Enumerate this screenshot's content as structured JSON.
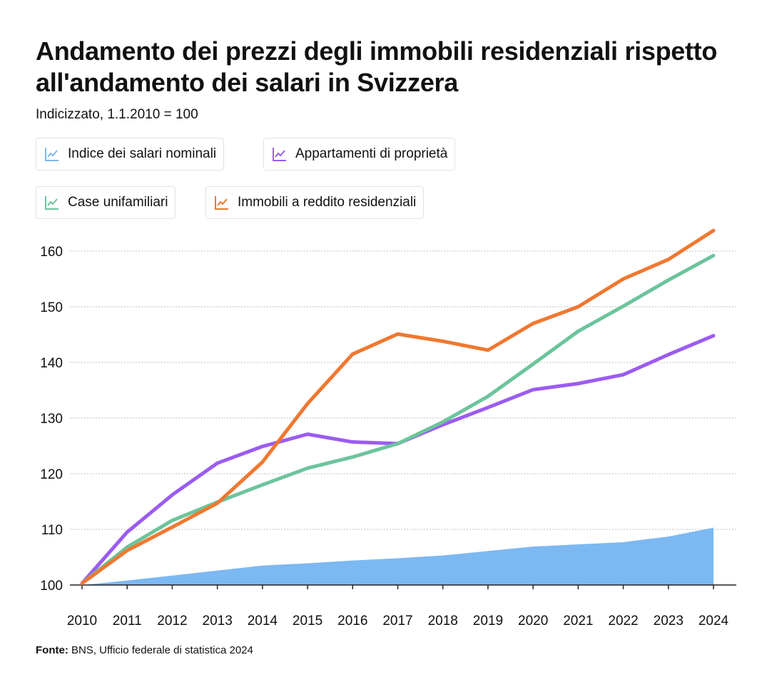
{
  "title": "Andamento dei prezzi degli immobili residenziali rispetto all'andamento dei salari in Svizzera",
  "subtitle": "Indicizzato, 1.1.2010 = 100",
  "source_label": "Fonte:",
  "source_text": "BNS, Ufficio federale di statistica 2024",
  "legend": [
    {
      "label": "Indice dei salari nominali",
      "color": "#7cb8f2",
      "icon": "line-chart-icon"
    },
    {
      "label": "Appartamenti di proprietà",
      "color": "#9b5cf0",
      "icon": "line-chart-icon"
    },
    {
      "label": "Case unifamiliari",
      "color": "#6cc49b",
      "icon": "line-chart-icon"
    },
    {
      "label": "Immobili a reddito residenziali",
      "color": "#f07830",
      "icon": "line-chart-icon"
    }
  ],
  "chart_data": {
    "type": "line",
    "title": "Andamento dei prezzi degli immobili residenziali rispetto all'andamento dei salari in Svizzera",
    "subtitle": "Indicizzato, 1.1.2010 = 100",
    "xlabel": "",
    "ylabel": "",
    "x": [
      "2010",
      "2011",
      "2012",
      "2013",
      "2014",
      "2015",
      "2016",
      "2017",
      "2018",
      "2019",
      "2020",
      "2021",
      "2022",
      "2023",
      "2024"
    ],
    "yticks": [
      "100",
      "110",
      "120",
      "130",
      "140",
      "150",
      "160"
    ],
    "ylim": [
      100,
      163
    ],
    "grid": true,
    "series": [
      {
        "name": "Indice dei salari nominali",
        "type": "area",
        "color": "#7cb8f2",
        "values": [
          100,
          100.8,
          101.7,
          102.6,
          103.5,
          103.9,
          104.4,
          104.8,
          105.3,
          106.1,
          106.9,
          107.3,
          107.7,
          108.7,
          110.3
        ]
      },
      {
        "name": "Appartamenti di proprietà",
        "color": "#9b5cf0",
        "values": [
          100.3,
          109.5,
          116.2,
          121.9,
          124.9,
          127.1,
          125.7,
          125.4,
          128.8,
          131.9,
          135.1,
          136.2,
          137.8,
          141.4,
          144.8
        ]
      },
      {
        "name": "Case unifamiliari",
        "color": "#6cc49b",
        "values": [
          100.3,
          106.8,
          111.6,
          114.9,
          118.0,
          121.0,
          123.0,
          125.4,
          129.3,
          133.9,
          139.7,
          145.6,
          150.1,
          154.8,
          159.2
        ]
      },
      {
        "name": "Immobili a reddito residenziali",
        "color": "#f07830",
        "values": [
          100.3,
          106.2,
          110.4,
          114.7,
          122.1,
          132.6,
          141.5,
          145.1,
          143.8,
          142.2,
          147.0,
          150.0,
          155.0,
          158.5,
          163.7
        ]
      }
    ]
  }
}
